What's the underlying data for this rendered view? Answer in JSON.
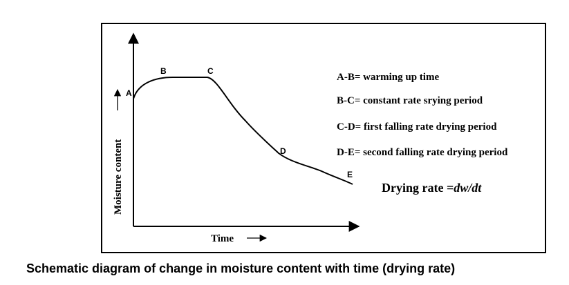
{
  "diagram": {
    "points": {
      "a": "A",
      "b": "B",
      "c": "C",
      "d": "D",
      "e": "E"
    },
    "legend": [
      "A-B= warming up time",
      "B-C= constant rate srying period",
      "C-D= first falling rate drying period",
      "D-E= second falling rate drying period"
    ],
    "rate": {
      "prefix": "Drying rate =",
      "formula": "dw/dt"
    },
    "axes": {
      "x_label": "Time",
      "y_label": "Moisture content"
    }
  },
  "caption": "Schematic diagram of change in moisture content with time (drying rate)"
}
